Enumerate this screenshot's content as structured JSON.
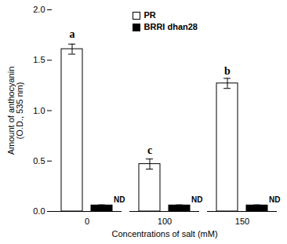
{
  "chart_data": {
    "type": "bar",
    "categories": [
      "0",
      "100",
      "150"
    ],
    "series": [
      {
        "name": "PR",
        "color": "#ffffff",
        "values": [
          1.61,
          0.47,
          1.27
        ],
        "errors": [
          0.05,
          0.05,
          0.05
        ]
      },
      {
        "name": "BRRI dhan28",
        "color": "#000000",
        "values": [
          0.06,
          0.06,
          0.06
        ],
        "errors": [
          0.005,
          0.005,
          0.005
        ]
      }
    ],
    "xlabel": "Concentrations of salt (mM)",
    "ylabel": "Amount of anthocyanin\n(O.D., 535 nm)",
    "ylim": [
      0,
      2.0
    ],
    "yticks": [
      {
        "value": 0,
        "label": "0.0"
      },
      0.5,
      {
        "value": 1,
        "label": "1.0"
      },
      1.5,
      {
        "value": 2,
        "label": "2.0"
      }
    ],
    "annotations": [
      {
        "text": "a",
        "category": "0",
        "series": "PR",
        "y": 1.72
      },
      {
        "text": "c",
        "category": "100",
        "series": "PR",
        "y": 0.57
      },
      {
        "text": "b",
        "category": "150",
        "series": "PR",
        "y": 1.36
      },
      {
        "text": "ND",
        "category": "0",
        "series": "BRRI dhan28",
        "y": 0.09
      },
      {
        "text": "ND",
        "category": "100",
        "series": "BRRI dhan28",
        "y": 0.09
      },
      {
        "text": "ND",
        "category": "150",
        "series": "BRRI dhan28",
        "y": 0.09
      }
    ],
    "legend": "upper center",
    "grid": false
  }
}
